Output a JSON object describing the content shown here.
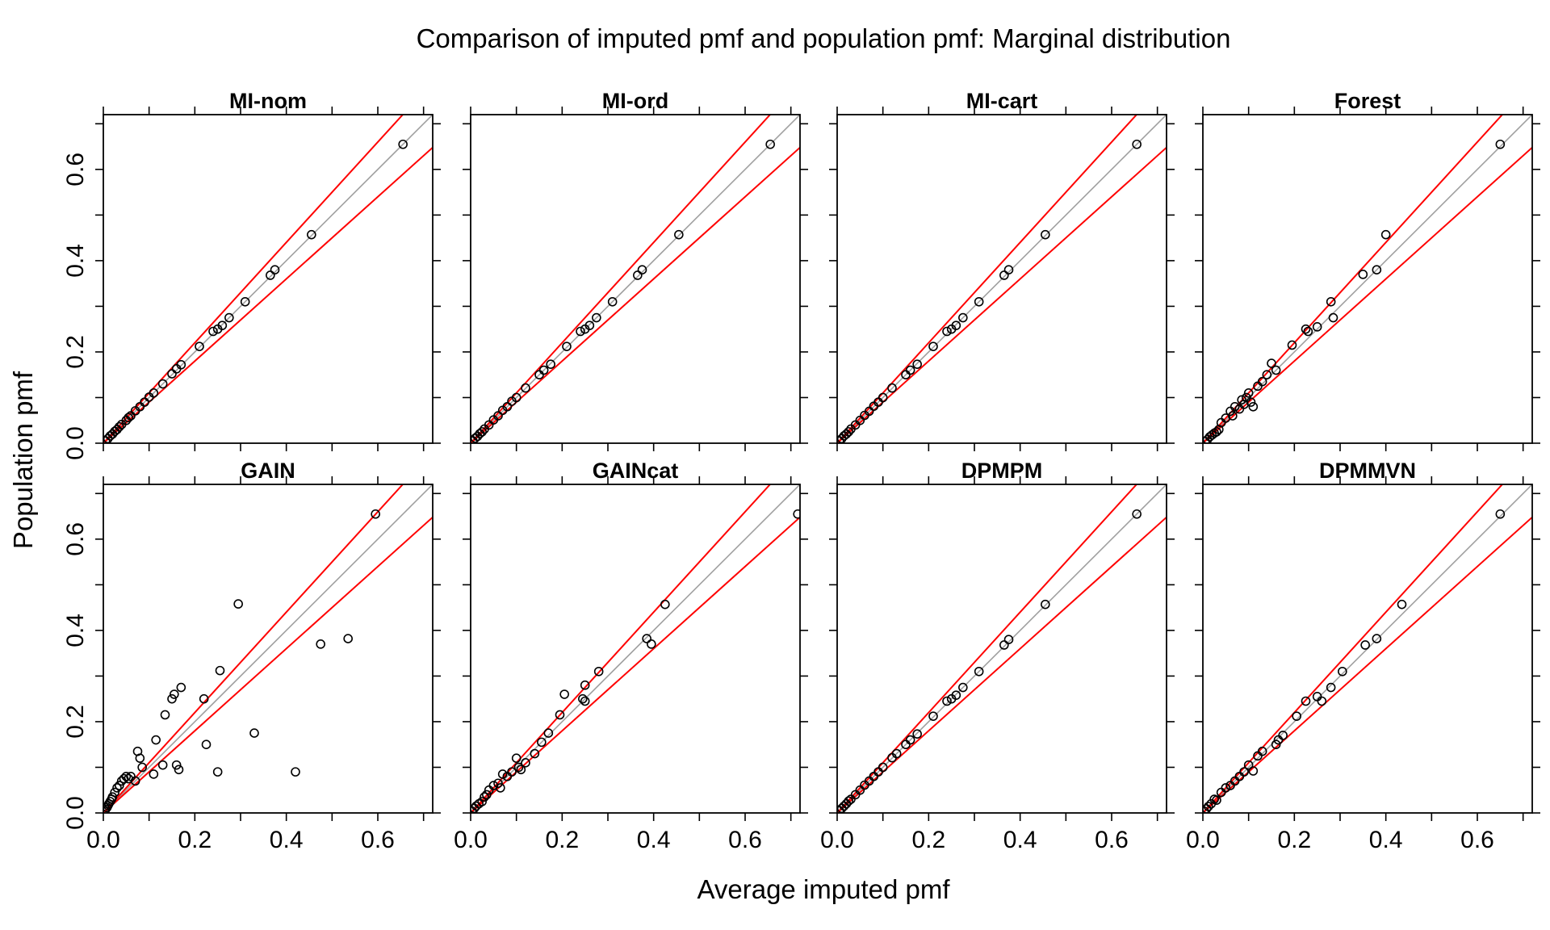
{
  "figure": {
    "title": "Comparison of imputed pmf and population pmf: Marginal distribution",
    "xlabel": "Average imputed pmf",
    "ylabel": "Population pmf"
  },
  "chart_data": [
    {
      "type": "scatter",
      "title": "MI-nom",
      "xlim": [
        0,
        0.72
      ],
      "ylim": [
        0,
        0.72
      ],
      "x_ticks": [
        "0.0",
        "0.2",
        "0.4",
        "0.6"
      ],
      "y_ticks": [
        "0.0",
        "0.2",
        "0.4",
        "0.6"
      ],
      "reference_lines": [
        {
          "slope": 1,
          "color": "#a0a0a0"
        },
        {
          "slope": 1.1,
          "color": "#ff0000"
        },
        {
          "slope": 0.9,
          "color": "#ff0000"
        }
      ],
      "points": [
        [
          0.005,
          0.005
        ],
        [
          0.01,
          0.01
        ],
        [
          0.015,
          0.016
        ],
        [
          0.02,
          0.02
        ],
        [
          0.025,
          0.026
        ],
        [
          0.03,
          0.03
        ],
        [
          0.035,
          0.036
        ],
        [
          0.04,
          0.041
        ],
        [
          0.05,
          0.05
        ],
        [
          0.055,
          0.056
        ],
        [
          0.06,
          0.06
        ],
        [
          0.07,
          0.071
        ],
        [
          0.08,
          0.08
        ],
        [
          0.09,
          0.09
        ],
        [
          0.1,
          0.101
        ],
        [
          0.11,
          0.11
        ],
        [
          0.13,
          0.13
        ],
        [
          0.15,
          0.152
        ],
        [
          0.16,
          0.163
        ],
        [
          0.17,
          0.172
        ],
        [
          0.21,
          0.212
        ],
        [
          0.24,
          0.245
        ],
        [
          0.25,
          0.25
        ],
        [
          0.26,
          0.258
        ],
        [
          0.275,
          0.275
        ],
        [
          0.31,
          0.31
        ],
        [
          0.365,
          0.368
        ],
        [
          0.375,
          0.38
        ],
        [
          0.455,
          0.457
        ],
        [
          0.655,
          0.655
        ]
      ]
    },
    {
      "type": "scatter",
      "title": "MI-ord",
      "xlim": [
        0,
        0.72
      ],
      "ylim": [
        0,
        0.72
      ],
      "x_ticks": [
        "0.0",
        "0.2",
        "0.4",
        "0.6"
      ],
      "y_ticks": [
        "0.0",
        "0.2",
        "0.4",
        "0.6"
      ],
      "reference_lines": [
        {
          "slope": 1,
          "color": "#a0a0a0"
        },
        {
          "slope": 1.1,
          "color": "#ff0000"
        },
        {
          "slope": 0.9,
          "color": "#ff0000"
        }
      ],
      "points": [
        [
          0.005,
          0.005
        ],
        [
          0.01,
          0.011
        ],
        [
          0.015,
          0.015
        ],
        [
          0.02,
          0.021
        ],
        [
          0.025,
          0.025
        ],
        [
          0.03,
          0.031
        ],
        [
          0.04,
          0.04
        ],
        [
          0.05,
          0.051
        ],
        [
          0.06,
          0.06
        ],
        [
          0.07,
          0.072
        ],
        [
          0.08,
          0.08
        ],
        [
          0.09,
          0.092
        ],
        [
          0.1,
          0.1
        ],
        [
          0.12,
          0.121
        ],
        [
          0.15,
          0.15
        ],
        [
          0.16,
          0.16
        ],
        [
          0.175,
          0.173
        ],
        [
          0.21,
          0.212
        ],
        [
          0.24,
          0.245
        ],
        [
          0.25,
          0.25
        ],
        [
          0.26,
          0.258
        ],
        [
          0.275,
          0.275
        ],
        [
          0.31,
          0.31
        ],
        [
          0.365,
          0.368
        ],
        [
          0.375,
          0.38
        ],
        [
          0.455,
          0.457
        ],
        [
          0.655,
          0.655
        ]
      ]
    },
    {
      "type": "scatter",
      "title": "MI-cart",
      "xlim": [
        0,
        0.72
      ],
      "ylim": [
        0,
        0.72
      ],
      "x_ticks": [
        "0.0",
        "0.2",
        "0.4",
        "0.6"
      ],
      "y_ticks": [
        "0.0",
        "0.2",
        "0.4",
        "0.6"
      ],
      "reference_lines": [
        {
          "slope": 1,
          "color": "#a0a0a0"
        },
        {
          "slope": 1.1,
          "color": "#ff0000"
        },
        {
          "slope": 0.9,
          "color": "#ff0000"
        }
      ],
      "points": [
        [
          0.005,
          0.005
        ],
        [
          0.01,
          0.01
        ],
        [
          0.015,
          0.016
        ],
        [
          0.02,
          0.02
        ],
        [
          0.025,
          0.025
        ],
        [
          0.03,
          0.031
        ],
        [
          0.04,
          0.04
        ],
        [
          0.05,
          0.05
        ],
        [
          0.06,
          0.061
        ],
        [
          0.07,
          0.07
        ],
        [
          0.08,
          0.081
        ],
        [
          0.09,
          0.09
        ],
        [
          0.1,
          0.1
        ],
        [
          0.12,
          0.121
        ],
        [
          0.15,
          0.15
        ],
        [
          0.16,
          0.16
        ],
        [
          0.175,
          0.173
        ],
        [
          0.21,
          0.212
        ],
        [
          0.24,
          0.245
        ],
        [
          0.25,
          0.25
        ],
        [
          0.26,
          0.258
        ],
        [
          0.275,
          0.275
        ],
        [
          0.31,
          0.31
        ],
        [
          0.365,
          0.368
        ],
        [
          0.375,
          0.38
        ],
        [
          0.455,
          0.457
        ],
        [
          0.655,
          0.655
        ]
      ]
    },
    {
      "type": "scatter",
      "title": "Forest",
      "xlim": [
        0,
        0.72
      ],
      "ylim": [
        0,
        0.72
      ],
      "x_ticks": [
        "0.0",
        "0.2",
        "0.4",
        "0.6"
      ],
      "y_ticks": [
        "0.0",
        "0.2",
        "0.4",
        "0.6"
      ],
      "reference_lines": [
        {
          "slope": 1,
          "color": "#a0a0a0"
        },
        {
          "slope": 1.1,
          "color": "#ff0000"
        },
        {
          "slope": 0.9,
          "color": "#ff0000"
        }
      ],
      "points": [
        [
          0.005,
          0.004
        ],
        [
          0.01,
          0.008
        ],
        [
          0.015,
          0.014
        ],
        [
          0.02,
          0.018
        ],
        [
          0.025,
          0.022
        ],
        [
          0.03,
          0.025
        ],
        [
          0.035,
          0.03
        ],
        [
          0.04,
          0.045
        ],
        [
          0.05,
          0.055
        ],
        [
          0.06,
          0.07
        ],
        [
          0.065,
          0.06
        ],
        [
          0.07,
          0.08
        ],
        [
          0.08,
          0.075
        ],
        [
          0.085,
          0.095
        ],
        [
          0.09,
          0.085
        ],
        [
          0.095,
          0.1
        ],
        [
          0.1,
          0.11
        ],
        [
          0.105,
          0.09
        ],
        [
          0.11,
          0.08
        ],
        [
          0.12,
          0.125
        ],
        [
          0.13,
          0.135
        ],
        [
          0.14,
          0.15
        ],
        [
          0.15,
          0.175
        ],
        [
          0.16,
          0.16
        ],
        [
          0.195,
          0.215
        ],
        [
          0.225,
          0.25
        ],
        [
          0.23,
          0.245
        ],
        [
          0.25,
          0.255
        ],
        [
          0.28,
          0.31
        ],
        [
          0.285,
          0.275
        ],
        [
          0.35,
          0.37
        ],
        [
          0.38,
          0.38
        ],
        [
          0.4,
          0.457
        ],
        [
          0.65,
          0.655
        ]
      ]
    },
    {
      "type": "scatter",
      "title": "GAIN",
      "xlim": [
        0,
        0.72
      ],
      "ylim": [
        0,
        0.72
      ],
      "x_ticks": [
        "0.0",
        "0.2",
        "0.4",
        "0.6"
      ],
      "y_ticks": [
        "0.0",
        "0.2",
        "0.4",
        "0.6"
      ],
      "reference_lines": [
        {
          "slope": 1,
          "color": "#a0a0a0"
        },
        {
          "slope": 1.1,
          "color": "#ff0000"
        },
        {
          "slope": 0.9,
          "color": "#ff0000"
        }
      ],
      "points": [
        [
          0.003,
          0.004
        ],
        [
          0.005,
          0.008
        ],
        [
          0.008,
          0.012
        ],
        [
          0.01,
          0.016
        ],
        [
          0.012,
          0.02
        ],
        [
          0.015,
          0.025
        ],
        [
          0.018,
          0.03
        ],
        [
          0.02,
          0.035
        ],
        [
          0.025,
          0.045
        ],
        [
          0.03,
          0.055
        ],
        [
          0.035,
          0.06
        ],
        [
          0.04,
          0.07
        ],
        [
          0.045,
          0.075
        ],
        [
          0.05,
          0.08
        ],
        [
          0.055,
          0.075
        ],
        [
          0.06,
          0.08
        ],
        [
          0.07,
          0.07
        ],
        [
          0.075,
          0.135
        ],
        [
          0.08,
          0.12
        ],
        [
          0.085,
          0.1
        ],
        [
          0.11,
          0.085
        ],
        [
          0.115,
          0.16
        ],
        [
          0.13,
          0.105
        ],
        [
          0.135,
          0.215
        ],
        [
          0.15,
          0.25
        ],
        [
          0.155,
          0.26
        ],
        [
          0.16,
          0.105
        ],
        [
          0.165,
          0.095
        ],
        [
          0.17,
          0.275
        ],
        [
          0.22,
          0.25
        ],
        [
          0.225,
          0.15
        ],
        [
          0.25,
          0.09
        ],
        [
          0.255,
          0.312
        ],
        [
          0.295,
          0.458
        ],
        [
          0.33,
          0.175
        ],
        [
          0.42,
          0.09
        ],
        [
          0.475,
          0.37
        ],
        [
          0.535,
          0.382
        ],
        [
          0.595,
          0.655
        ]
      ]
    },
    {
      "type": "scatter",
      "title": "GAINcat",
      "xlim": [
        0,
        0.72
      ],
      "ylim": [
        0,
        0.72
      ],
      "x_ticks": [
        "0.0",
        "0.2",
        "0.4",
        "0.6"
      ],
      "y_ticks": [
        "0.0",
        "0.2",
        "0.4",
        "0.6"
      ],
      "reference_lines": [
        {
          "slope": 1,
          "color": "#a0a0a0"
        },
        {
          "slope": 1.1,
          "color": "#ff0000"
        },
        {
          "slope": 0.9,
          "color": "#ff0000"
        }
      ],
      "points": [
        [
          0.003,
          0.004
        ],
        [
          0.008,
          0.01
        ],
        [
          0.012,
          0.015
        ],
        [
          0.018,
          0.02
        ],
        [
          0.025,
          0.025
        ],
        [
          0.03,
          0.035
        ],
        [
          0.035,
          0.04
        ],
        [
          0.04,
          0.05
        ],
        [
          0.05,
          0.06
        ],
        [
          0.06,
          0.065
        ],
        [
          0.065,
          0.055
        ],
        [
          0.07,
          0.085
        ],
        [
          0.08,
          0.08
        ],
        [
          0.09,
          0.09
        ],
        [
          0.1,
          0.12
        ],
        [
          0.105,
          0.1
        ],
        [
          0.11,
          0.095
        ],
        [
          0.12,
          0.11
        ],
        [
          0.14,
          0.13
        ],
        [
          0.155,
          0.155
        ],
        [
          0.17,
          0.175
        ],
        [
          0.195,
          0.215
        ],
        [
          0.205,
          0.26
        ],
        [
          0.245,
          0.25
        ],
        [
          0.25,
          0.245
        ],
        [
          0.25,
          0.28
        ],
        [
          0.28,
          0.31
        ],
        [
          0.385,
          0.382
        ],
        [
          0.395,
          0.37
        ],
        [
          0.425,
          0.457
        ],
        [
          0.715,
          0.655
        ]
      ]
    },
    {
      "type": "scatter",
      "title": "DPMPM",
      "xlim": [
        0,
        0.72
      ],
      "ylim": [
        0,
        0.72
      ],
      "x_ticks": [
        "0.0",
        "0.2",
        "0.4",
        "0.6"
      ],
      "y_ticks": [
        "0.0",
        "0.2",
        "0.4",
        "0.6"
      ],
      "reference_lines": [
        {
          "slope": 1,
          "color": "#a0a0a0"
        },
        {
          "slope": 1.1,
          "color": "#ff0000"
        },
        {
          "slope": 0.9,
          "color": "#ff0000"
        }
      ],
      "points": [
        [
          0.005,
          0.005
        ],
        [
          0.01,
          0.01
        ],
        [
          0.015,
          0.015
        ],
        [
          0.02,
          0.02
        ],
        [
          0.025,
          0.026
        ],
        [
          0.03,
          0.03
        ],
        [
          0.04,
          0.04
        ],
        [
          0.05,
          0.05
        ],
        [
          0.06,
          0.061
        ],
        [
          0.07,
          0.07
        ],
        [
          0.08,
          0.08
        ],
        [
          0.09,
          0.09
        ],
        [
          0.1,
          0.1
        ],
        [
          0.12,
          0.121
        ],
        [
          0.13,
          0.13
        ],
        [
          0.15,
          0.15
        ],
        [
          0.16,
          0.16
        ],
        [
          0.175,
          0.173
        ],
        [
          0.21,
          0.212
        ],
        [
          0.24,
          0.245
        ],
        [
          0.25,
          0.25
        ],
        [
          0.26,
          0.258
        ],
        [
          0.275,
          0.275
        ],
        [
          0.31,
          0.31
        ],
        [
          0.365,
          0.368
        ],
        [
          0.375,
          0.38
        ],
        [
          0.455,
          0.457
        ],
        [
          0.655,
          0.655
        ]
      ]
    },
    {
      "type": "scatter",
      "title": "DPMMVN",
      "xlim": [
        0,
        0.72
      ],
      "ylim": [
        0,
        0.72
      ],
      "x_ticks": [
        "0.0",
        "0.2",
        "0.4",
        "0.6"
      ],
      "y_ticks": [
        "0.0",
        "0.2",
        "0.4",
        "0.6"
      ],
      "reference_lines": [
        {
          "slope": 1,
          "color": "#a0a0a0"
        },
        {
          "slope": 1.1,
          "color": "#ff0000"
        },
        {
          "slope": 0.9,
          "color": "#ff0000"
        }
      ],
      "points": [
        [
          0.003,
          0.004
        ],
        [
          0.008,
          0.009
        ],
        [
          0.012,
          0.014
        ],
        [
          0.018,
          0.02
        ],
        [
          0.025,
          0.03
        ],
        [
          0.03,
          0.028
        ],
        [
          0.04,
          0.045
        ],
        [
          0.05,
          0.055
        ],
        [
          0.06,
          0.06
        ],
        [
          0.07,
          0.07
        ],
        [
          0.08,
          0.08
        ],
        [
          0.09,
          0.09
        ],
        [
          0.1,
          0.105
        ],
        [
          0.11,
          0.092
        ],
        [
          0.12,
          0.125
        ],
        [
          0.13,
          0.135
        ],
        [
          0.16,
          0.15
        ],
        [
          0.165,
          0.16
        ],
        [
          0.175,
          0.17
        ],
        [
          0.205,
          0.212
        ],
        [
          0.225,
          0.245
        ],
        [
          0.25,
          0.255
        ],
        [
          0.26,
          0.245
        ],
        [
          0.28,
          0.275
        ],
        [
          0.305,
          0.31
        ],
        [
          0.355,
          0.368
        ],
        [
          0.38,
          0.382
        ],
        [
          0.435,
          0.457
        ],
        [
          0.65,
          0.655
        ]
      ]
    }
  ]
}
